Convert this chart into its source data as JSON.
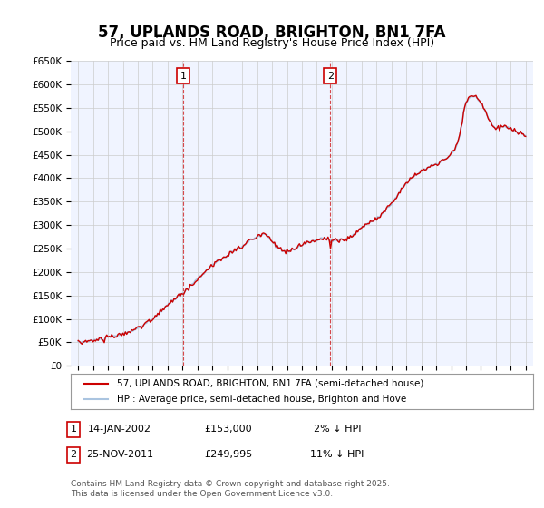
{
  "title": "57, UPLANDS ROAD, BRIGHTON, BN1 7FA",
  "subtitle": "Price paid vs. HM Land Registry's House Price Index (HPI)",
  "ylabel_ticks": [
    "£0",
    "£50K",
    "£100K",
    "£150K",
    "£200K",
    "£250K",
    "£300K",
    "£350K",
    "£400K",
    "£450K",
    "£500K",
    "£550K",
    "£600K",
    "£650K"
  ],
  "ylim": [
    0,
    650000
  ],
  "ytick_vals": [
    0,
    50000,
    100000,
    150000,
    200000,
    250000,
    300000,
    350000,
    400000,
    450000,
    500000,
    550000,
    600000,
    650000
  ],
  "bg_color": "#f0f4ff",
  "plot_bg": "#f0f4ff",
  "grid_color": "#cccccc",
  "hpi_color": "#aac4e0",
  "sale_color": "#cc0000",
  "marker1_year": 2002.04,
  "marker2_year": 2011.9,
  "annotation1": [
    "1",
    "14-JAN-2002",
    "£153,000",
    "2% ↓ HPI"
  ],
  "annotation2": [
    "2",
    "25-NOV-2011",
    "£249,995",
    "11% ↓ HPI"
  ],
  "legend_label1": "57, UPLANDS ROAD, BRIGHTON, BN1 7FA (semi-detached house)",
  "legend_label2": "HPI: Average price, semi-detached house, Brighton and Hove",
  "footer": "Contains HM Land Registry data © Crown copyright and database right 2025.\nThis data is licensed under the Open Government Licence v3.0.",
  "xmin": 1995,
  "xmax": 2025
}
